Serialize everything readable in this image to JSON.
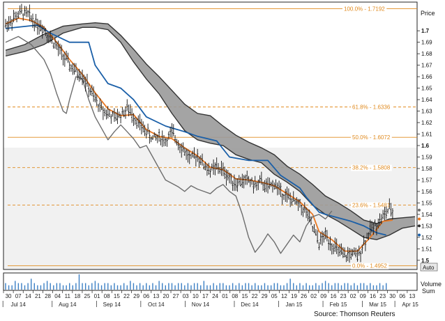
{
  "chart_data": {
    "type": "candlestick",
    "price_axis": {
      "title": "Price",
      "ylim": [
        1.492,
        1.725
      ],
      "ticks": [
        1.7,
        1.69,
        1.68,
        1.67,
        1.66,
        1.65,
        1.64,
        1.63,
        1.62,
        1.61,
        1.6,
        1.59,
        1.58,
        1.57,
        1.56,
        1.55,
        1.54,
        1.53,
        1.52,
        1.51,
        1.5
      ],
      "bold_ticks": [
        1.7,
        1.6,
        1.5
      ]
    },
    "volume_axis": {
      "title": "Volume",
      "unit": "Sum"
    },
    "date_ticks": [
      "30",
      "07",
      "14",
      "21",
      "28",
      "04",
      "11",
      "18",
      "25",
      "01",
      "08",
      "15",
      "22",
      "29",
      "06",
      "13",
      "20",
      "27",
      "03",
      "10",
      "17",
      "24",
      "01",
      "08",
      "15",
      "22",
      "29",
      "05",
      "12",
      "19",
      "26",
      "02",
      "09",
      "16",
      "23",
      "02",
      "09",
      "16",
      "23",
      "30",
      "06",
      "13"
    ],
    "month_labels": [
      "Jul 14",
      "Aug 14",
      "Sep 14",
      "Oct 14",
      "Nov 14",
      "Dec 14",
      "Jan 15",
      "Feb 15",
      "Mar 15",
      "Apr 15"
    ],
    "fibonacci": [
      {
        "label": "100.0% - 1.7192",
        "value": 1.7192
      },
      {
        "label": "61.8% - 1.6336",
        "value": 1.6336
      },
      {
        "label": "50.0% - 1.6072",
        "value": 1.6072
      },
      {
        "label": "38.2% - 1.5808",
        "value": 1.5808
      },
      {
        "label": "23.6% - 1.5481",
        "value": 1.5481
      },
      {
        "label": "0.0% - 1.4952",
        "value": 1.4952
      }
    ],
    "price_path": [
      [
        0,
        1.705
      ],
      [
        3,
        1.712
      ],
      [
        5,
        1.716
      ],
      [
        7,
        1.714
      ],
      [
        9,
        1.708
      ],
      [
        12,
        1.702
      ],
      [
        14,
        1.694
      ],
      [
        16,
        1.686
      ],
      [
        18,
        1.678
      ],
      [
        20,
        1.67
      ],
      [
        22,
        1.664
      ],
      [
        24,
        1.662
      ],
      [
        26,
        1.65
      ],
      [
        28,
        1.64
      ],
      [
        30,
        1.632
      ],
      [
        32,
        1.628
      ],
      [
        34,
        1.624
      ],
      [
        36,
        1.627
      ],
      [
        38,
        1.632
      ],
      [
        40,
        1.626
      ],
      [
        42,
        1.618
      ],
      [
        44,
        1.612
      ],
      [
        46,
        1.606
      ],
      [
        48,
        1.608
      ],
      [
        50,
        1.604
      ],
      [
        52,
        1.611
      ],
      [
        54,
        1.603
      ],
      [
        56,
        1.595
      ],
      [
        58,
        1.588
      ],
      [
        60,
        1.592
      ],
      [
        62,
        1.583
      ],
      [
        64,
        1.578
      ],
      [
        66,
        1.581
      ],
      [
        68,
        1.578
      ],
      [
        70,
        1.572
      ],
      [
        72,
        1.567
      ],
      [
        74,
        1.569
      ],
      [
        76,
        1.57
      ],
      [
        78,
        1.565
      ],
      [
        80,
        1.568
      ],
      [
        82,
        1.563
      ],
      [
        84,
        1.567
      ],
      [
        86,
        1.56
      ],
      [
        88,
        1.556
      ],
      [
        90,
        1.551
      ],
      [
        92,
        1.548
      ],
      [
        94,
        1.542
      ],
      [
        96,
        1.528
      ],
      [
        98,
        1.515
      ],
      [
        100,
        1.522
      ],
      [
        102,
        1.514
      ],
      [
        104,
        1.508
      ],
      [
        106,
        1.503
      ],
      [
        108,
        1.506
      ],
      [
        110,
        1.503
      ],
      [
        112,
        1.515
      ],
      [
        114,
        1.526
      ],
      [
        116,
        1.532
      ],
      [
        118,
        1.538
      ],
      [
        120,
        1.545
      ],
      [
        121,
        1.542
      ]
    ],
    "series": [
      {
        "name": "",
        "color": "#e87722",
        "points": [
          [
            0,
            1.706
          ],
          [
            4,
            1.711
          ],
          [
            8,
            1.709
          ],
          [
            12,
            1.703
          ],
          [
            16,
            1.69
          ],
          [
            20,
            1.675
          ],
          [
            24,
            1.662
          ],
          [
            28,
            1.646
          ],
          [
            32,
            1.632
          ],
          [
            36,
            1.626
          ],
          [
            40,
            1.627
          ],
          [
            44,
            1.614
          ],
          [
            48,
            1.608
          ],
          [
            52,
            1.606
          ],
          [
            56,
            1.598
          ],
          [
            60,
            1.591
          ],
          [
            64,
            1.581
          ],
          [
            68,
            1.579
          ],
          [
            72,
            1.571
          ],
          [
            76,
            1.57
          ],
          [
            80,
            1.568
          ],
          [
            84,
            1.565
          ],
          [
            88,
            1.558
          ],
          [
            92,
            1.551
          ],
          [
            96,
            1.54
          ],
          [
            98,
            1.525
          ],
          [
            102,
            1.518
          ],
          [
            106,
            1.508
          ],
          [
            110,
            1.508
          ],
          [
            114,
            1.52
          ],
          [
            118,
            1.534
          ],
          [
            121,
            1.535
          ]
        ]
      },
      {
        "name": "",
        "color": "#1a5fa8",
        "points": [
          [
            0,
            1.702
          ],
          [
            10,
            1.705
          ],
          [
            14,
            1.698
          ],
          [
            20,
            1.69
          ],
          [
            26,
            1.69
          ],
          [
            28,
            1.67
          ],
          [
            32,
            1.654
          ],
          [
            36,
            1.65
          ],
          [
            40,
            1.64
          ],
          [
            44,
            1.625
          ],
          [
            50,
            1.617
          ],
          [
            56,
            1.612
          ],
          [
            60,
            1.608
          ],
          [
            66,
            1.604
          ],
          [
            70,
            1.59
          ],
          [
            76,
            1.587
          ],
          [
            82,
            1.587
          ],
          [
            86,
            1.574
          ],
          [
            92,
            1.563
          ],
          [
            94,
            1.555
          ],
          [
            98,
            1.542
          ],
          [
            100,
            1.54
          ],
          [
            108,
            1.534
          ],
          [
            112,
            1.53
          ],
          [
            116,
            1.524
          ],
          [
            119,
            1.522
          ]
        ]
      },
      {
        "name": "",
        "color": "#6d6d6d",
        "points": [
          [
            0,
            1.69
          ],
          [
            4,
            1.695
          ],
          [
            8,
            1.688
          ],
          [
            12,
            1.675
          ],
          [
            14,
            1.663
          ],
          [
            16,
            1.645
          ],
          [
            18,
            1.63
          ],
          [
            19,
            1.628
          ],
          [
            20,
            1.64
          ],
          [
            22,
            1.66
          ],
          [
            24,
            1.658
          ],
          [
            26,
            1.64
          ],
          [
            28,
            1.625
          ],
          [
            30,
            1.615
          ],
          [
            32,
            1.605
          ],
          [
            34,
            1.612
          ],
          [
            36,
            1.618
          ],
          [
            38,
            1.612
          ],
          [
            40,
            1.606
          ],
          [
            42,
            1.598
          ],
          [
            44,
            1.6
          ],
          [
            46,
            1.59
          ],
          [
            48,
            1.58
          ],
          [
            50,
            1.57
          ],
          [
            52,
            1.567
          ],
          [
            54,
            1.564
          ],
          [
            56,
            1.56
          ],
          [
            58,
            1.565
          ],
          [
            60,
            1.562
          ],
          [
            62,
            1.56
          ],
          [
            64,
            1.558
          ],
          [
            66,
            1.563
          ],
          [
            68,
            1.566
          ],
          [
            70,
            1.56
          ],
          [
            72,
            1.556
          ],
          [
            74,
            1.54
          ],
          [
            76,
            1.52
          ],
          [
            78,
            1.507
          ],
          [
            80,
            1.514
          ],
          [
            82,
            1.523
          ],
          [
            84,
            1.516
          ],
          [
            86,
            1.506
          ],
          [
            88,
            1.514
          ],
          [
            90,
            1.522
          ],
          [
            92,
            1.516
          ],
          [
            94,
            1.53
          ],
          [
            96,
            1.538
          ],
          [
            98,
            1.54
          ],
          [
            100,
            1.536
          ],
          [
            102,
            1.543
          ]
        ]
      }
    ],
    "cloud": {
      "color": "#9a9a9a",
      "span_a": [
        [
          0,
          1.683
        ],
        [
          6,
          1.688
        ],
        [
          12,
          1.697
        ],
        [
          18,
          1.704
        ],
        [
          24,
          1.706
        ],
        [
          28,
          1.707
        ],
        [
          32,
          1.706
        ],
        [
          36,
          1.696
        ],
        [
          40,
          1.684
        ],
        [
          44,
          1.671
        ],
        [
          48,
          1.66
        ],
        [
          52,
          1.648
        ],
        [
          56,
          1.636
        ],
        [
          60,
          1.628
        ],
        [
          64,
          1.626
        ],
        [
          68,
          1.617
        ],
        [
          72,
          1.609
        ],
        [
          76,
          1.603
        ],
        [
          80,
          1.598
        ],
        [
          84,
          1.592
        ],
        [
          88,
          1.582
        ],
        [
          92,
          1.575
        ],
        [
          96,
          1.566
        ],
        [
          100,
          1.556
        ],
        [
          104,
          1.55
        ],
        [
          108,
          1.543
        ],
        [
          112,
          1.535
        ],
        [
          116,
          1.532
        ],
        [
          120,
          1.536
        ],
        [
          124,
          1.537
        ],
        [
          128,
          1.538
        ]
      ],
      "span_b": [
        [
          0,
          1.678
        ],
        [
          6,
          1.682
        ],
        [
          12,
          1.688
        ],
        [
          18,
          1.698
        ],
        [
          24,
          1.703
        ],
        [
          28,
          1.703
        ],
        [
          32,
          1.701
        ],
        [
          36,
          1.69
        ],
        [
          40,
          1.673
        ],
        [
          44,
          1.658
        ],
        [
          48,
          1.645
        ],
        [
          52,
          1.628
        ],
        [
          56,
          1.613
        ],
        [
          60,
          1.605
        ],
        [
          64,
          1.602
        ],
        [
          68,
          1.6
        ],
        [
          72,
          1.592
        ],
        [
          76,
          1.588
        ],
        [
          80,
          1.585
        ],
        [
          84,
          1.575
        ],
        [
          88,
          1.568
        ],
        [
          92,
          1.56
        ],
        [
          96,
          1.548
        ],
        [
          100,
          1.54
        ],
        [
          104,
          1.534
        ],
        [
          108,
          1.527
        ],
        [
          112,
          1.52
        ],
        [
          116,
          1.518
        ],
        [
          120,
          1.522
        ],
        [
          124,
          1.528
        ],
        [
          128,
          1.53
        ]
      ]
    },
    "current_markers": [
      {
        "value": 1.5437,
        "color": "#6d6d6d"
      },
      {
        "value": 1.536,
        "color": "#e87722"
      },
      {
        "value": 1.53,
        "color": "#333333"
      },
      {
        "value": 1.522,
        "color": "#1a5fa8"
      }
    ],
    "volume": [
      3,
      2,
      2,
      4,
      3,
      3,
      2,
      3,
      5,
      3,
      2,
      2,
      3,
      4,
      3,
      2,
      3,
      3,
      2,
      2,
      3,
      2,
      3,
      7,
      3,
      3,
      2,
      3,
      4,
      3,
      2,
      3,
      3,
      2,
      3,
      2,
      2,
      3,
      2,
      4,
      3,
      2,
      3,
      2,
      3,
      2,
      3,
      2,
      4,
      3,
      2,
      3,
      3,
      2,
      3,
      3,
      2,
      3,
      2,
      3,
      3,
      2,
      4,
      2,
      2,
      3,
      2,
      3,
      3,
      2,
      2,
      3,
      2,
      3,
      2,
      3,
      3,
      2,
      3,
      2,
      2,
      3,
      2,
      2,
      3,
      3,
      2,
      2,
      3,
      5,
      3,
      2,
      3,
      2,
      3,
      2,
      2,
      3,
      2,
      3,
      4,
      3,
      2,
      3,
      3,
      2,
      3,
      3,
      2,
      3,
      2,
      3,
      3,
      2,
      3,
      2,
      2,
      3,
      2,
      3
    ]
  },
  "labels": {
    "source": "Source: Thomson Reuters",
    "auto_button": "Auto"
  }
}
